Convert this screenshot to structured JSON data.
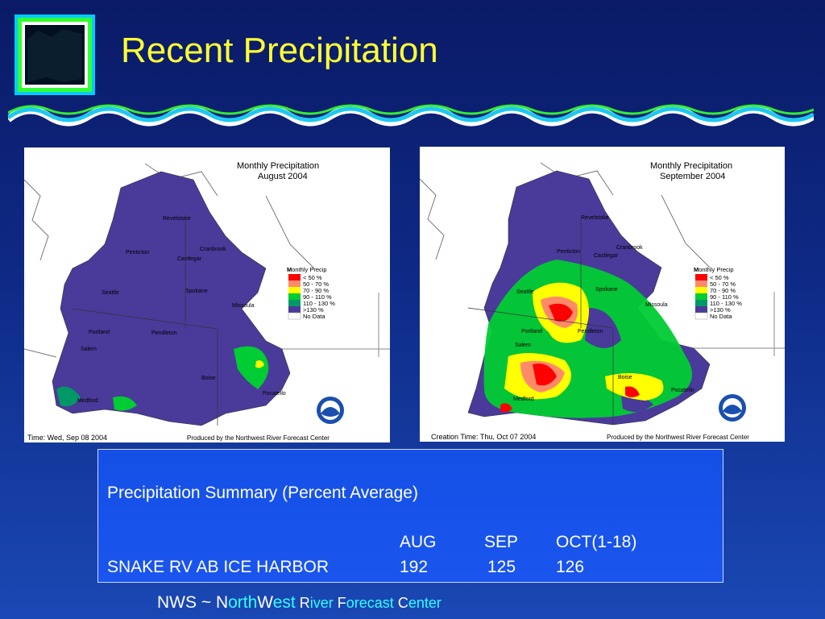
{
  "slide": {
    "title": "Recent Precipitation"
  },
  "maps": [
    {
      "title": "Monthly Precipitation",
      "month": "August 2004",
      "creation": "Time: Wed, Sep 08 2004",
      "produced": "Produced by the Northwest River Forecast Center",
      "cities": [
        "Revelstoke",
        "Penticton",
        "Castlegar",
        "Cranbrook",
        "Seattle",
        "Spokane",
        "Missoula",
        "Portland",
        "Pendleton",
        "Salem",
        "Boise",
        "Pocatello",
        "Medford"
      ]
    },
    {
      "title": "Monthly Precipitation",
      "month": "September 2004",
      "creation": "Creation Time: Thu, Oct 07 2004",
      "produced": "Produced by the Northwest River Forecast Center",
      "cities": [
        "Revelstoke",
        "Penticton",
        "Castlegar",
        "Cranbrook",
        "Seattle",
        "Spokane",
        "Missoula",
        "Portland",
        "Pendleton",
        "Salem",
        "Boise",
        "Pocatello",
        "Medford"
      ]
    }
  ],
  "legend": {
    "title_first": "M",
    "title_rest": "onthly Precip",
    "items": [
      {
        "label": "< 50 %",
        "color": "#ff0000"
      },
      {
        "label": "50 - 70 %",
        "color": "#ff8a6a"
      },
      {
        "label": "70 - 90 %",
        "color": "#ffff00"
      },
      {
        "label": "90 - 110 %",
        "color": "#00cc33"
      },
      {
        "label": "110 - 130 %",
        "color": "#009966"
      },
      {
        "label": ">130 %",
        "color": "#4a3a9a"
      },
      {
        "label": "No Data",
        "color": "#ffffff"
      }
    ]
  },
  "summary": {
    "title": "Precipitation Summary (Percent Average)",
    "headers": [
      "AUG",
      "SEP",
      "OCT(1-18)"
    ],
    "row_name": "SNAKE RV AB ICE HARBOR",
    "row_values": [
      "192",
      "125",
      "126"
    ]
  },
  "footer": {
    "prefix": "NWS ~ ",
    "p1": "N",
    "p2": "orth",
    "p3": "W",
    "p4": "est",
    "p5": " R",
    "p6": "iver",
    "p7": " F",
    "p8": "orecast",
    "p9": " C",
    "p10": "enter"
  },
  "colors": {
    "title": "#ffff33",
    "basin": "#4a3a9a",
    "accent_cyan": "#33ffff"
  }
}
